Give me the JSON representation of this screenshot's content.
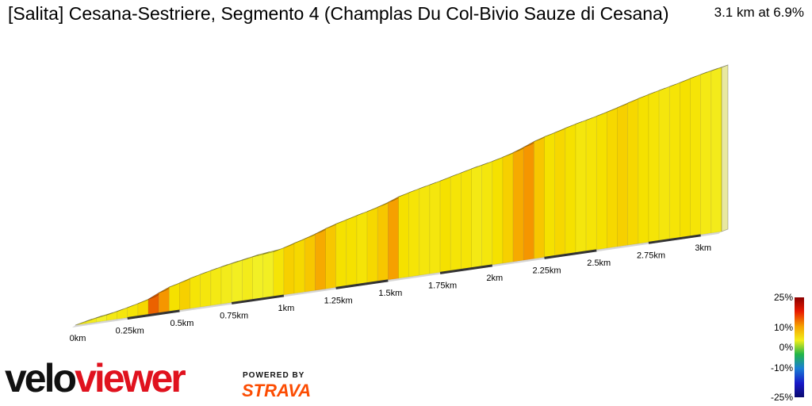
{
  "title": "[Salita] Cesana-Sestriere, Segmento 4 (Champlas Du Col-Bivio Sauze di Cesana)",
  "summary": "3.1 km at 6.9%",
  "branding": {
    "veloviewer_part1": "velo",
    "veloviewer_part2": "viewer",
    "powered_by": "POWERED BY",
    "strava": "STRAVA"
  },
  "legend": {
    "labels": [
      "25%",
      "10%",
      "0%",
      "-10%",
      "-25%"
    ],
    "colors": [
      "#8b0000",
      "#e81a00",
      "#f5a100",
      "#f2ee1a",
      "#21b548",
      "#1a7fd4",
      "#1818c8",
      "#0a0a6e"
    ]
  },
  "chart_data": {
    "type": "area",
    "title": "[Salita] Cesana-Sestriere, Segmento 4 (Champlas Du Col-Bivio Sauze di Cesana)",
    "xlabel": "",
    "ylabel": "",
    "x_unit": "km",
    "xlim": [
      0,
      3.1
    ],
    "tick_labels": [
      "0km",
      "0.25km",
      "0.5km",
      "0.75km",
      "1km",
      "1.25km",
      "1.5km",
      "1.75km",
      "2km",
      "2.25km",
      "2.5km",
      "2.75km",
      "3km"
    ],
    "ticks": [
      0,
      0.25,
      0.5,
      0.75,
      1.0,
      1.25,
      1.5,
      1.75,
      2.0,
      2.25,
      2.5,
      2.75,
      3.0
    ],
    "distance": [
      0,
      0.05,
      0.1,
      0.15,
      0.2,
      0.25,
      0.3,
      0.35,
      0.4,
      0.45,
      0.5,
      0.55,
      0.6,
      0.65,
      0.7,
      0.75,
      0.8,
      0.85,
      0.9,
      0.95,
      1.0,
      1.05,
      1.1,
      1.15,
      1.2,
      1.25,
      1.3,
      1.35,
      1.4,
      1.45,
      1.5,
      1.55,
      1.6,
      1.65,
      1.7,
      1.75,
      1.8,
      1.85,
      1.9,
      1.95,
      2.0,
      2.05,
      2.1,
      2.15,
      2.2,
      2.25,
      2.3,
      2.35,
      2.4,
      2.45,
      2.5,
      2.55,
      2.6,
      2.65,
      2.7,
      2.75,
      2.8,
      2.85,
      2.9,
      2.95,
      3.0,
      3.05,
      3.1
    ],
    "gradient_pct": [
      5.5,
      5.0,
      4.0,
      5.5,
      6.0,
      6.5,
      7.5,
      12.5,
      11.0,
      7.0,
      8.0,
      6.5,
      6.0,
      5.5,
      5.0,
      4.5,
      5.0,
      3.0,
      2.5,
      6.5,
      8.0,
      7.5,
      8.5,
      10.0,
      8.5,
      7.0,
      7.0,
      6.5,
      7.5,
      8.5,
      10.5,
      7.0,
      6.5,
      6.0,
      6.0,
      7.0,
      6.5,
      6.5,
      5.5,
      6.0,
      7.0,
      8.0,
      10.0,
      11.0,
      8.5,
      7.0,
      7.5,
      7.0,
      6.0,
      6.5,
      7.0,
      7.5,
      8.0,
      7.5,
      7.0,
      6.5,
      6.0,
      6.5,
      7.0,
      6.5,
      5.5,
      5.0
    ]
  }
}
